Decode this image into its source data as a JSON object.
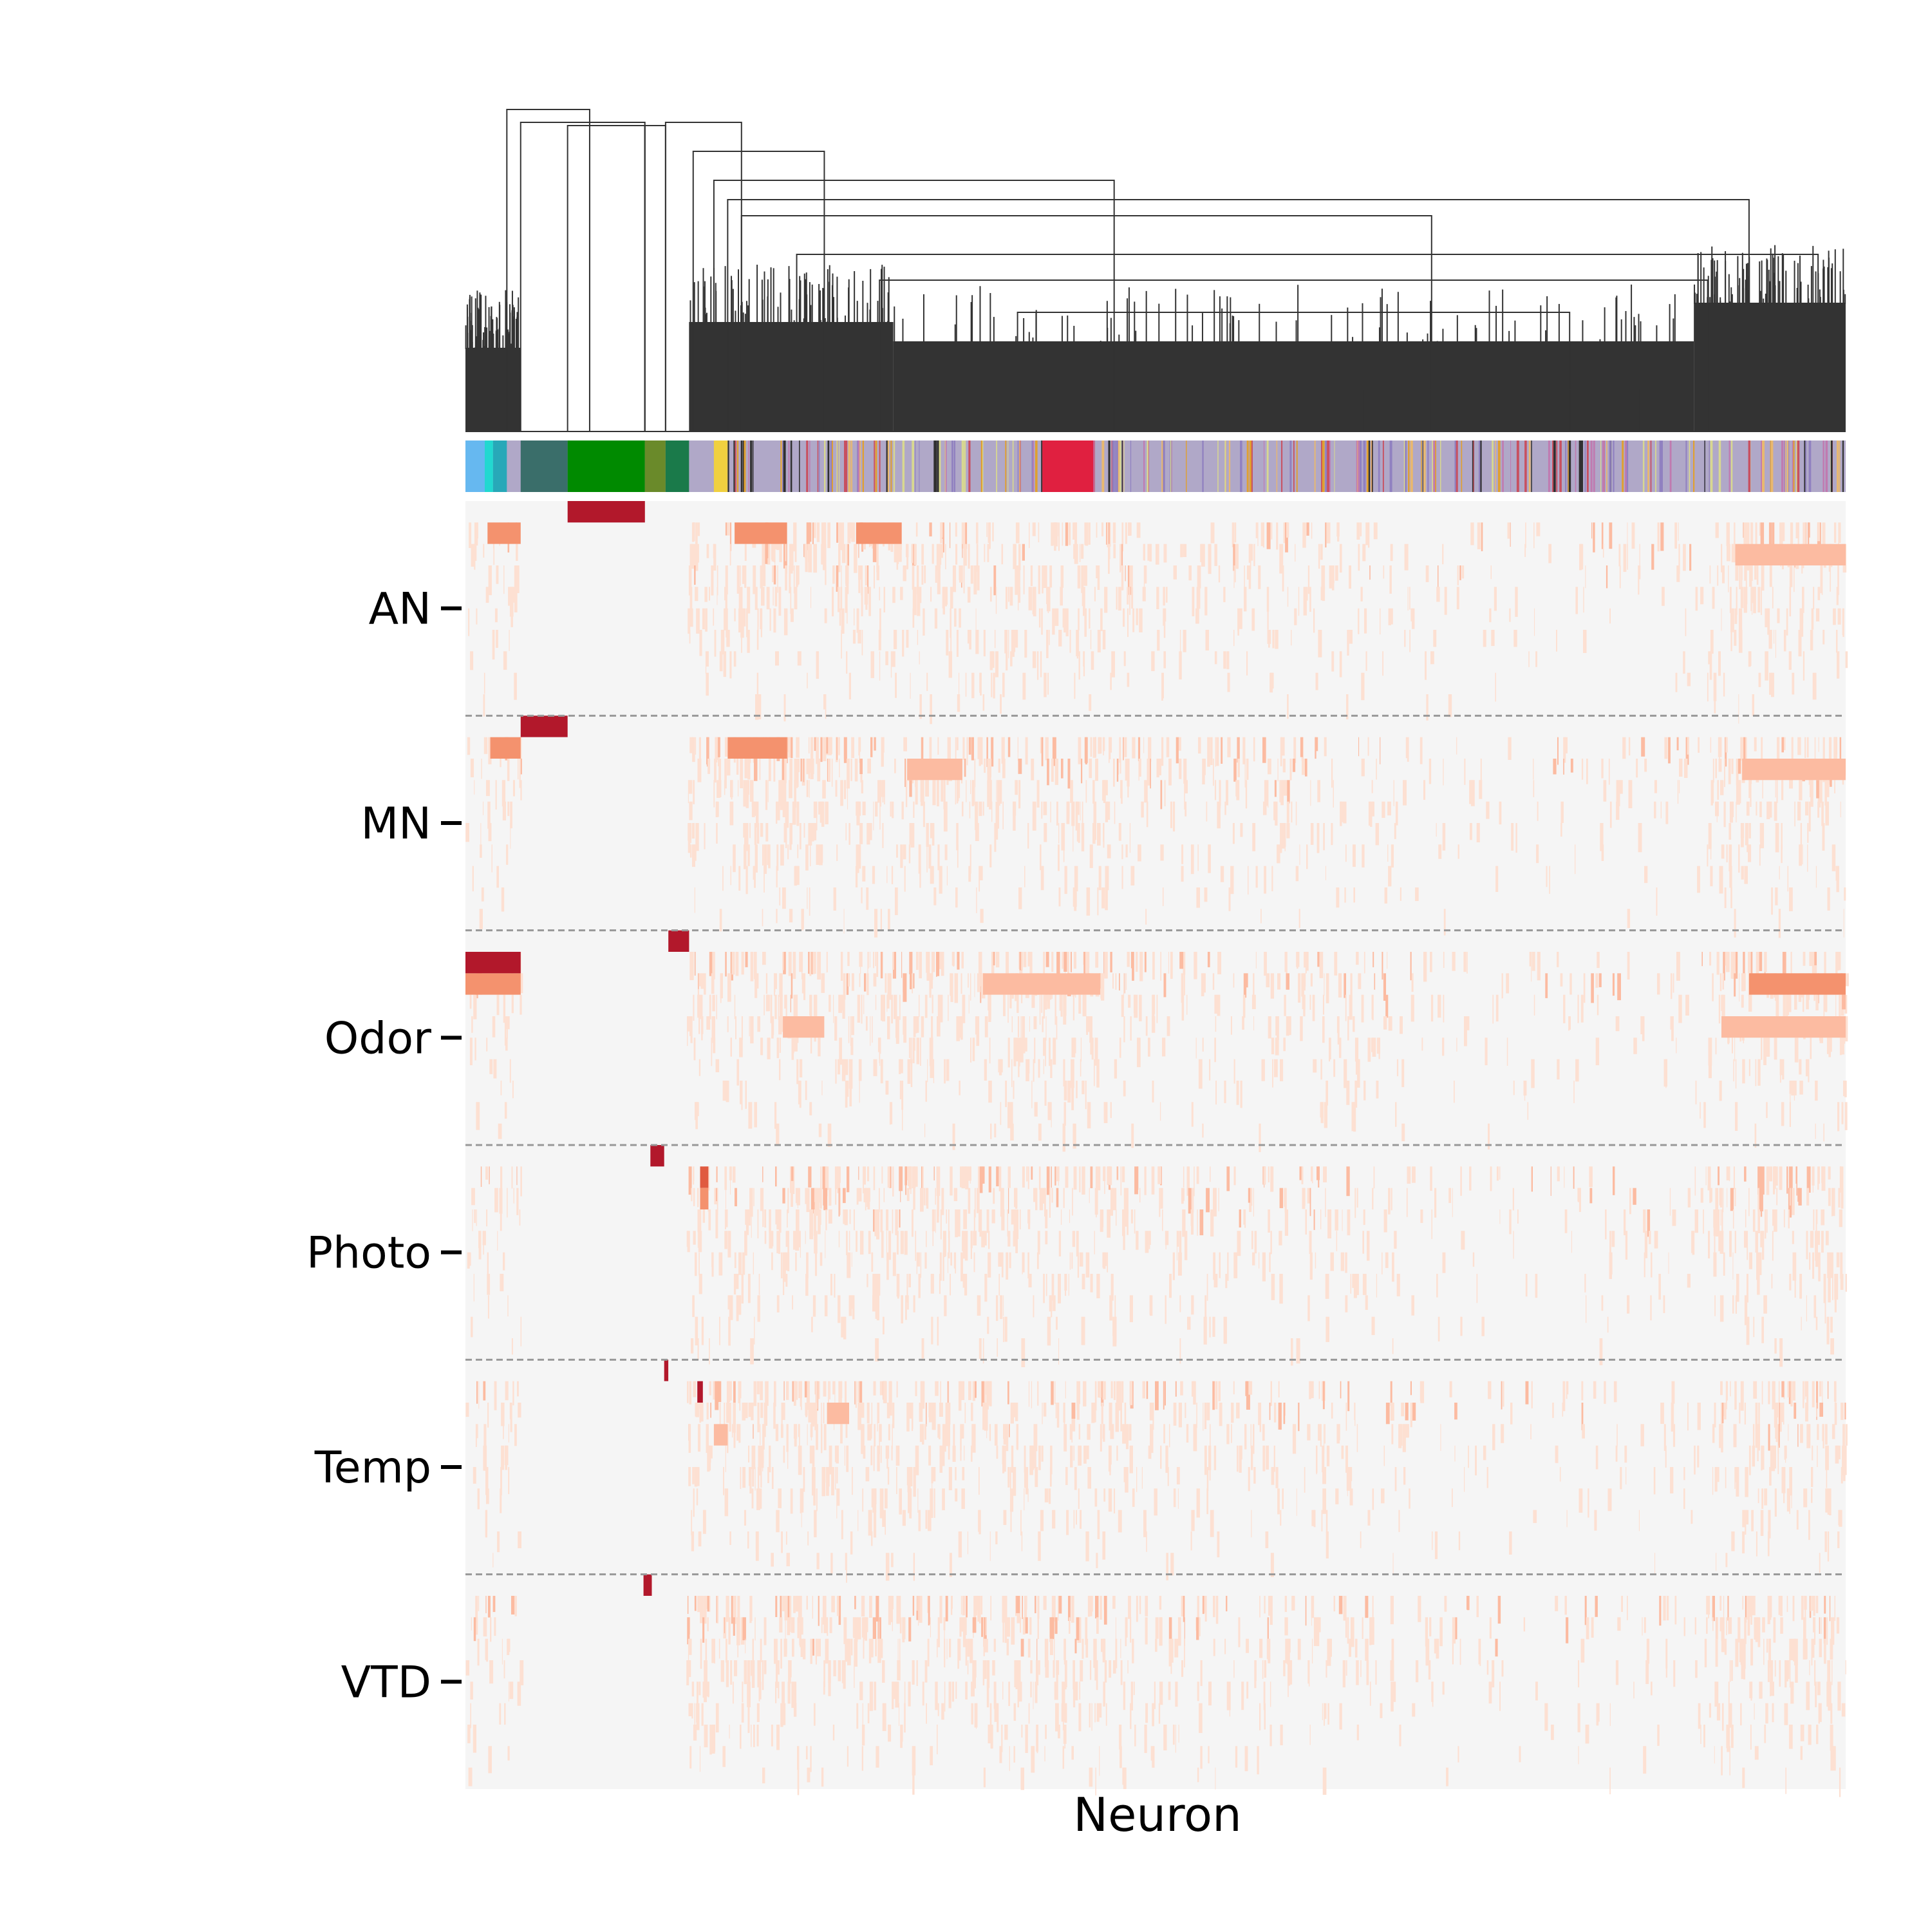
{
  "chart_data": {
    "type": "heatmap",
    "xlabel": "Neuron",
    "ylabel": "",
    "row_groups": [
      {
        "label": "AN"
      },
      {
        "label": "MN"
      },
      {
        "label": "Odor"
      },
      {
        "label": "Photo"
      },
      {
        "label": "Temp"
      },
      {
        "label": "VTD"
      }
    ],
    "layers_per_group": 10,
    "grid": false,
    "group_separator": "dashed",
    "colormap": [
      "#f5f5f5",
      "#fde0d2",
      "#fcbba1",
      "#f4926e",
      "#e05a40",
      "#b2182b"
    ],
    "background_color": "#f5f5f5",
    "dendrogram": {
      "position": "top",
      "line_color": "#333333"
    },
    "cluster_color_bar": {
      "segments": [
        {
          "color": "#66b8f0",
          "span": [
            0.0,
            0.014
          ]
        },
        {
          "color": "#22d8d0",
          "span": [
            0.014,
            0.02
          ]
        },
        {
          "color": "#28a8b8",
          "span": [
            0.02,
            0.03
          ]
        },
        {
          "color": "#3a6e6a",
          "span": [
            0.04,
            0.074
          ]
        },
        {
          "color": "#008a00",
          "span": [
            0.074,
            0.13
          ]
        },
        {
          "color": "#6a8a2a",
          "span": [
            0.13,
            0.145
          ]
        },
        {
          "color": "#1a7a4a",
          "span": [
            0.145,
            0.162
          ]
        },
        {
          "color": "#f0d040",
          "span": [
            0.18,
            0.19
          ]
        },
        {
          "color": "#b0a8c8",
          "span": [
            0.19,
            1.0
          ]
        }
      ]
    },
    "strong_blocks": [
      {
        "group": "AN",
        "layer": 0,
        "x": [
          0.074,
          0.13
        ],
        "value": 1.0
      },
      {
        "group": "MN",
        "layer": 0,
        "x": [
          0.04,
          0.074
        ],
        "value": 1.0
      },
      {
        "group": "Odor",
        "layer": 0,
        "x": [
          0.147,
          0.162
        ],
        "value": 1.0
      },
      {
        "group": "Odor",
        "layer": 1,
        "x": [
          0.0,
          0.04
        ],
        "value": 0.9
      },
      {
        "group": "Photo",
        "layer": 0,
        "x": [
          0.134,
          0.144
        ],
        "value": 1.0
      },
      {
        "group": "Temp",
        "layer": 0,
        "x": [
          0.144,
          0.147
        ],
        "value": 1.0
      },
      {
        "group": "VTD",
        "layer": 0,
        "x": [
          0.129,
          0.135
        ],
        "value": 1.0
      }
    ],
    "medium_blocks": [
      {
        "group": "AN",
        "layer": 1,
        "x": [
          0.016,
          0.04
        ],
        "value": 0.6
      },
      {
        "group": "AN",
        "layer": 1,
        "x": [
          0.195,
          0.233
        ],
        "value": 0.55
      },
      {
        "group": "AN",
        "layer": 1,
        "x": [
          0.283,
          0.316
        ],
        "value": 0.55
      },
      {
        "group": "AN",
        "layer": 2,
        "x": [
          0.92,
          1.0
        ],
        "value": 0.4
      },
      {
        "group": "MN",
        "layer": 1,
        "x": [
          0.018,
          0.04
        ],
        "value": 0.6
      },
      {
        "group": "MN",
        "layer": 1,
        "x": [
          0.19,
          0.233
        ],
        "value": 0.55
      },
      {
        "group": "MN",
        "layer": 2,
        "x": [
          0.32,
          0.36
        ],
        "value": 0.45
      },
      {
        "group": "MN",
        "layer": 2,
        "x": [
          0.925,
          1.0
        ],
        "value": 0.45
      },
      {
        "group": "Odor",
        "layer": 2,
        "x": [
          0.0,
          0.04
        ],
        "value": 0.5
      },
      {
        "group": "Odor",
        "layer": 2,
        "x": [
          0.375,
          0.46
        ],
        "value": 0.45
      },
      {
        "group": "Odor",
        "layer": 2,
        "x": [
          0.93,
          1.0
        ],
        "value": 0.55
      },
      {
        "group": "Odor",
        "layer": 4,
        "x": [
          0.23,
          0.26
        ],
        "value": 0.4
      },
      {
        "group": "Odor",
        "layer": 4,
        "x": [
          0.91,
          1.0
        ],
        "value": 0.45
      },
      {
        "group": "Photo",
        "layer": 1,
        "x": [
          0.17,
          0.176
        ],
        "value": 0.8
      },
      {
        "group": "Photo",
        "layer": 2,
        "x": [
          0.17,
          0.176
        ],
        "value": 0.55
      },
      {
        "group": "Temp",
        "layer": 1,
        "x": [
          0.168,
          0.172
        ],
        "value": 0.9
      },
      {
        "group": "Temp",
        "layer": 2,
        "x": [
          0.262,
          0.278
        ],
        "value": 0.45
      },
      {
        "group": "Temp",
        "layer": 3,
        "x": [
          0.18,
          0.19
        ],
        "value": 0.4
      }
    ]
  }
}
